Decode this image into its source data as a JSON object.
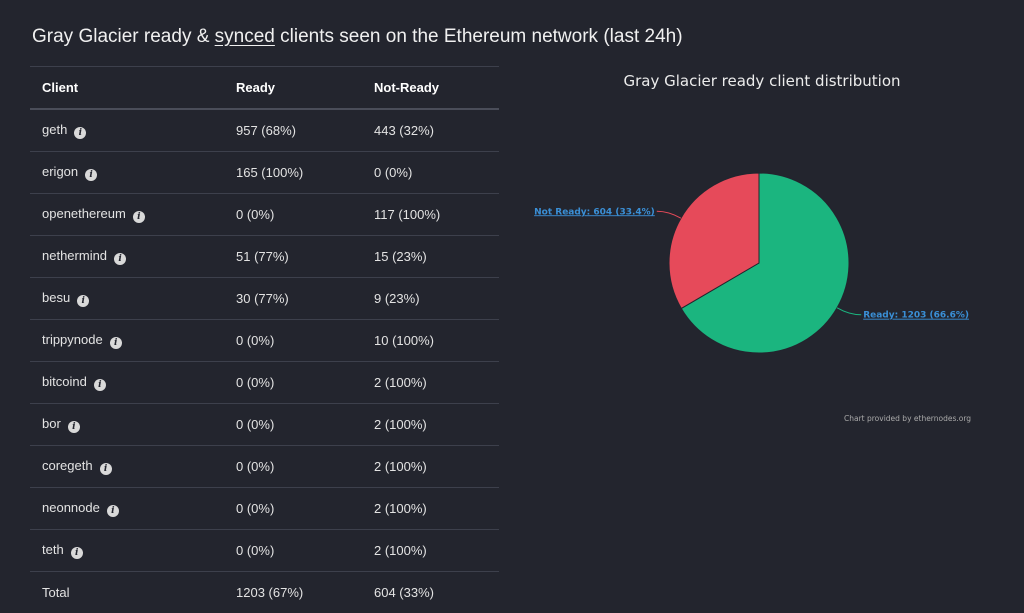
{
  "header": {
    "title_prefix": "Gray Glacier ready & ",
    "title_link": "synced",
    "title_suffix": " clients seen on the Ethereum network (last 24h)"
  },
  "table": {
    "columns": [
      "Client",
      "Ready",
      "Not-Ready"
    ],
    "rows": [
      {
        "client": "geth",
        "ready": "957 (68%)",
        "not_ready": "443 (32%)"
      },
      {
        "client": "erigon",
        "ready": "165 (100%)",
        "not_ready": "0 (0%)"
      },
      {
        "client": "openethereum",
        "ready": "0 (0%)",
        "not_ready": "117 (100%)"
      },
      {
        "client": "nethermind",
        "ready": "51 (77%)",
        "not_ready": "15 (23%)"
      },
      {
        "client": "besu",
        "ready": "30 (77%)",
        "not_ready": "9 (23%)"
      },
      {
        "client": "trippynode",
        "ready": "0 (0%)",
        "not_ready": "10 (100%)"
      },
      {
        "client": "bitcoind",
        "ready": "0 (0%)",
        "not_ready": "2 (100%)"
      },
      {
        "client": "bor",
        "ready": "0 (0%)",
        "not_ready": "2 (100%)"
      },
      {
        "client": "coregeth",
        "ready": "0 (0%)",
        "not_ready": "2 (100%)"
      },
      {
        "client": "neonnode",
        "ready": "0 (0%)",
        "not_ready": "2 (100%)"
      },
      {
        "client": "teth",
        "ready": "0 (0%)",
        "not_ready": "2 (100%)"
      }
    ],
    "total": {
      "label": "Total",
      "ready": "1203 (67%)",
      "not_ready": "604 (33%)"
    },
    "info_icon": "info-icon"
  },
  "chart_data": {
    "type": "pie",
    "title": "Gray Glacier ready client distribution",
    "slices": [
      {
        "label": "Ready: 1203 (66.6%)",
        "value": 1203,
        "color": "#1bb57f"
      },
      {
        "label": "Not Ready: 604 (33.4%)",
        "value": 604,
        "color": "#e64a5a"
      }
    ],
    "credit": "Chart provided by ethernodes.org"
  },
  "colors": {
    "background": "#23252e",
    "ready": "#1bb57f",
    "not_ready": "#e64a5a",
    "label_link": "#3a8fd6"
  }
}
